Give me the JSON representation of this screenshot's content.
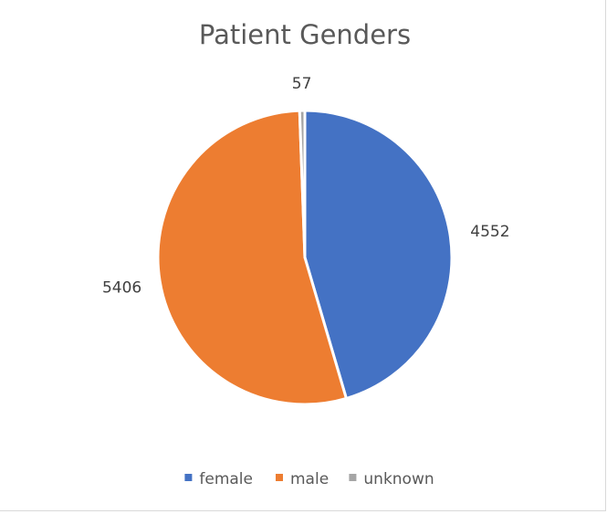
{
  "chart_data": {
    "type": "pie",
    "title": "Patient Genders",
    "categories": [
      "female",
      "male",
      "unknown"
    ],
    "values": [
      4552,
      5406,
      57
    ],
    "data_labels": [
      "4552",
      "5406",
      "57"
    ],
    "colors": [
      "#4472c4",
      "#ed7d31",
      "#a5a5a5"
    ],
    "legend_position": "bottom",
    "start_angle_deg": 0,
    "direction": "clockwise"
  }
}
